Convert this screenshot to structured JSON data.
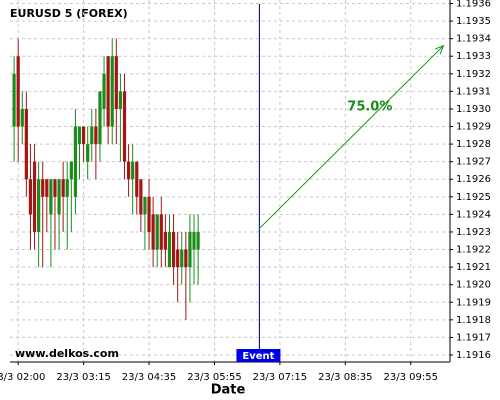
{
  "chart_data": {
    "type": "candlestick",
    "title": "EURUSD 5 (FOREX)",
    "xlabel": "Date",
    "watermark": "www.delkos.com",
    "up_color": "#1a8c1a",
    "down_color": "#a51515",
    "x": [
      1,
      2,
      3,
      4,
      5,
      6,
      7,
      8,
      9,
      10,
      11,
      12,
      13,
      14,
      15,
      16,
      17,
      18,
      19,
      20,
      21,
      22,
      23,
      24,
      25,
      26,
      27,
      28,
      29,
      30,
      31,
      32,
      33,
      34,
      35,
      36,
      37,
      38,
      39,
      40,
      41,
      42,
      43,
      44,
      45,
      46
    ],
    "open": [
      1.1929,
      1.1933,
      1.1929,
      1.193,
      1.1926,
      1.1927,
      1.1923,
      1.1926,
      1.1926,
      1.1924,
      1.1926,
      1.1924,
      1.1926,
      1.1925,
      1.1926,
      1.1925,
      1.1928,
      1.1929,
      1.1927,
      1.1928,
      1.1929,
      1.1928,
      1.193,
      1.1933,
      1.1929,
      1.1933,
      1.193,
      1.1931,
      1.1927,
      1.1926,
      1.1927,
      1.1926,
      1.1924,
      1.1925,
      1.1924,
      1.1922,
      1.1924,
      1.1923,
      1.1921,
      1.1923,
      1.1922,
      1.1921,
      1.1922,
      1.1921,
      1.1922,
      1.1922
    ],
    "high": [
      1.1933,
      1.1934,
      1.1931,
      1.1931,
      1.1928,
      1.1928,
      1.1927,
      1.1927,
      1.1926,
      1.1926,
      1.1926,
      1.1926,
      1.1927,
      1.1927,
      1.1927,
      1.193,
      1.1929,
      1.1929,
      1.1929,
      1.193,
      1.193,
      1.1931,
      1.1933,
      1.1933,
      1.1934,
      1.1934,
      1.1932,
      1.1932,
      1.1928,
      1.1928,
      1.1927,
      1.1926,
      1.1925,
      1.1926,
      1.1925,
      1.1924,
      1.1925,
      1.1924,
      1.1924,
      1.1924,
      1.1923,
      1.1923,
      1.1923,
      1.1924,
      1.1924,
      1.1924
    ],
    "low": [
      1.1927,
      1.1927,
      1.1928,
      1.1925,
      1.1922,
      1.1922,
      1.1921,
      1.1921,
      1.1923,
      1.1921,
      1.1922,
      1.1922,
      1.1923,
      1.1922,
      1.1923,
      1.1924,
      1.1926,
      1.1927,
      1.1926,
      1.1927,
      1.1926,
      1.1927,
      1.1929,
      1.1928,
      1.1928,
      1.1928,
      1.1927,
      1.1926,
      1.1925,
      1.1924,
      1.1924,
      1.1923,
      1.1922,
      1.1922,
      1.1921,
      1.1921,
      1.1921,
      1.1921,
      1.1921,
      1.192,
      1.1919,
      1.192,
      1.1918,
      1.1919,
      1.192,
      1.192
    ],
    "close": [
      1.1932,
      1.1929,
      1.193,
      1.1926,
      1.1924,
      1.1923,
      1.1926,
      1.1925,
      1.1925,
      1.1926,
      1.1925,
      1.1926,
      1.1925,
      1.1926,
      1.1927,
      1.1929,
      1.1929,
      1.1928,
      1.1928,
      1.1929,
      1.1928,
      1.1931,
      1.1932,
      1.1929,
      1.1933,
      1.193,
      1.1931,
      1.1927,
      1.1926,
      1.1927,
      1.1925,
      1.1924,
      1.1925,
      1.1923,
      1.1922,
      1.1924,
      1.1922,
      1.1922,
      1.1923,
      1.1921,
      1.1921,
      1.1922,
      1.1921,
      1.1923,
      1.1923,
      1.1923
    ],
    "xlim": [
      0,
      107.6
    ],
    "xticks": [
      {
        "value": 2,
        "label": "23/3 02:00"
      },
      {
        "value": 18,
        "label": "23/3 03:15"
      },
      {
        "value": 34,
        "label": "23/3 04:35"
      },
      {
        "value": 50,
        "label": "23/3 05:55"
      },
      {
        "value": 66,
        "label": "23/3 07:15"
      },
      {
        "value": 82,
        "label": "23/3 08:35"
      },
      {
        "value": 98,
        "label": "23/3 09:55"
      }
    ],
    "ylim": [
      1.19156,
      1.19362
    ],
    "yticks": [
      1.1916,
      1.1917,
      1.1918,
      1.1919,
      {
        "value": 1.192,
        "label": "1.1920"
      },
      1.1921,
      1.1922,
      1.1923,
      1.1924,
      1.1925,
      1.1926,
      1.1927,
      1.1928,
      1.1929,
      {
        "value": 1.193,
        "label": "1.1930"
      },
      1.1931,
      1.1932,
      1.1933,
      1.1934,
      1.1935,
      1.1936
    ],
    "grid": true,
    "event": {
      "x": 61,
      "label": "Event",
      "color": "#1a1a8c"
    },
    "projection": {
      "x": [
        61,
        106
      ],
      "y": [
        1.19232,
        1.19336
      ],
      "label": "75.0%",
      "color": "#1a8c1a"
    }
  }
}
